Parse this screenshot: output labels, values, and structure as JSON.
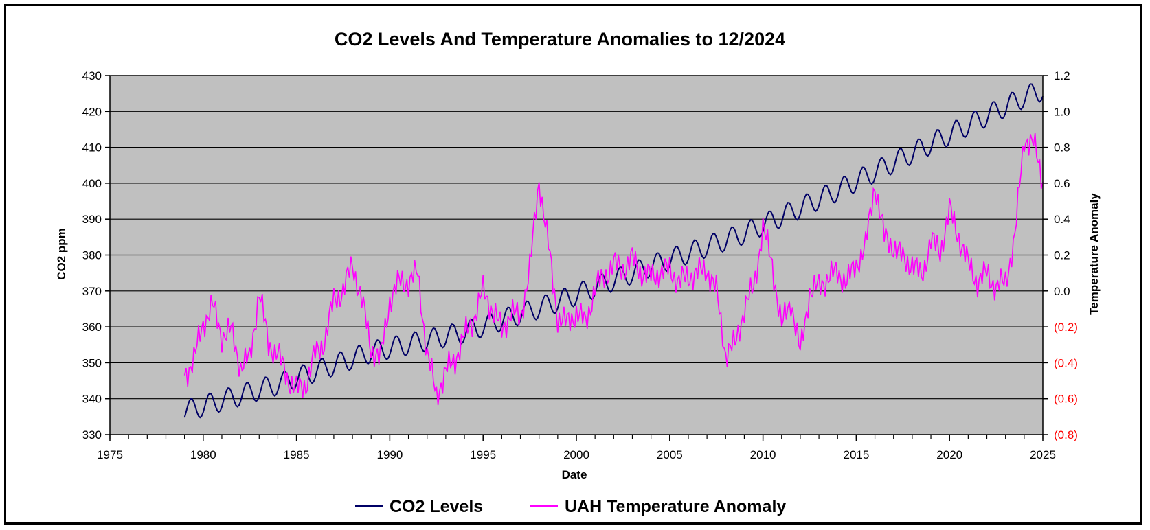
{
  "chart_data": {
    "type": "line",
    "title": "CO2 Levels And Temperature Anomalies to 12/2024",
    "xlabel": "Date",
    "ylabel": "CO2 ppm",
    "y2label": "Temperature Anomaly",
    "xlim": [
      1975,
      2025
    ],
    "ylim": [
      330,
      430
    ],
    "y2lim": [
      -0.8,
      1.2
    ],
    "x_ticks": [
      "1975",
      "1980",
      "1985",
      "1990",
      "1995",
      "2000",
      "2005",
      "2010",
      "2015",
      "2020",
      "2025"
    ],
    "y_ticks": [
      "330",
      "340",
      "350",
      "360",
      "370",
      "380",
      "390",
      "400",
      "410",
      "420",
      "430"
    ],
    "y2_ticks": [
      "(0.8)",
      "(0.6)",
      "(0.4)",
      "(0.2)",
      "0.0",
      "0.2",
      "0.4",
      "0.6",
      "0.8",
      "1.0",
      "1.2"
    ],
    "grid": true,
    "legend_position": "bottom",
    "colors": {
      "plot_background": "#c0c0c0",
      "grid": "#000000",
      "negative_tick": "#ff0000"
    },
    "series": [
      {
        "name": "CO2 Levels",
        "axis": "left",
        "color": "#000066",
        "seasonal_amplitude_ppm": 3,
        "x": [
          1979.0,
          1984.0,
          1989.0,
          1994.0,
          1999.0,
          2004.0,
          2009.0,
          2014.0,
          2019.0,
          2024.0,
          2025.0
        ],
        "trend": [
          336.5,
          344.0,
          353.0,
          358.5,
          367.0,
          377.0,
          386.0,
          398.0,
          411.0,
          424.0,
          426.0
        ]
      },
      {
        "name": "UAH Temperature Anomaly",
        "axis": "right",
        "color": "#ff00ff",
        "x": [
          1979.0,
          1979.5,
          1980.0,
          1980.5,
          1981.0,
          1981.5,
          1982.0,
          1982.5,
          1983.0,
          1983.5,
          1984.0,
          1984.5,
          1985.0,
          1985.5,
          1986.0,
          1986.5,
          1987.0,
          1987.5,
          1988.0,
          1988.5,
          1989.0,
          1989.5,
          1990.0,
          1990.5,
          1991.0,
          1991.5,
          1992.0,
          1992.5,
          1993.0,
          1993.5,
          1994.0,
          1994.5,
          1995.0,
          1995.5,
          1996.0,
          1996.5,
          1997.0,
          1997.5,
          1998.0,
          1998.5,
          1999.0,
          1999.5,
          2000.0,
          2000.5,
          2001.0,
          2001.5,
          2002.0,
          2002.5,
          2003.0,
          2003.5,
          2004.0,
          2004.5,
          2005.0,
          2005.5,
          2006.0,
          2006.5,
          2007.0,
          2007.5,
          2008.0,
          2008.5,
          2009.0,
          2009.5,
          2010.0,
          2010.5,
          2011.0,
          2011.5,
          2012.0,
          2012.5,
          2013.0,
          2013.5,
          2014.0,
          2014.5,
          2015.0,
          2015.5,
          2016.0,
          2016.5,
          2017.0,
          2017.5,
          2018.0,
          2018.5,
          2019.0,
          2019.5,
          2020.0,
          2020.5,
          2021.0,
          2021.5,
          2022.0,
          2022.5,
          2023.0,
          2023.5,
          2024.0,
          2024.5,
          2025.0
        ],
        "values": [
          -0.47,
          -0.38,
          -0.18,
          -0.08,
          -0.25,
          -0.22,
          -0.42,
          -0.38,
          0.0,
          -0.3,
          -0.35,
          -0.48,
          -0.55,
          -0.52,
          -0.35,
          -0.28,
          -0.05,
          0.0,
          0.15,
          -0.05,
          -0.32,
          -0.38,
          -0.05,
          0.05,
          0.05,
          0.1,
          -0.35,
          -0.58,
          -0.45,
          -0.38,
          -0.25,
          -0.15,
          0.0,
          -0.1,
          -0.22,
          -0.12,
          -0.15,
          0.12,
          0.62,
          0.25,
          -0.15,
          -0.18,
          -0.12,
          -0.18,
          0.02,
          0.08,
          0.15,
          0.12,
          0.18,
          0.1,
          0.08,
          0.1,
          0.12,
          0.05,
          0.08,
          0.1,
          0.12,
          0.0,
          -0.35,
          -0.3,
          -0.1,
          0.02,
          0.35,
          0.15,
          -0.2,
          -0.05,
          -0.35,
          0.0,
          0.02,
          0.08,
          0.1,
          0.05,
          0.15,
          0.25,
          0.6,
          0.3,
          0.25,
          0.18,
          0.15,
          0.08,
          0.28,
          0.22,
          0.45,
          0.3,
          0.15,
          0.05,
          0.1,
          0.02,
          0.05,
          0.3,
          0.85,
          0.82,
          0.62
        ]
      }
    ]
  }
}
